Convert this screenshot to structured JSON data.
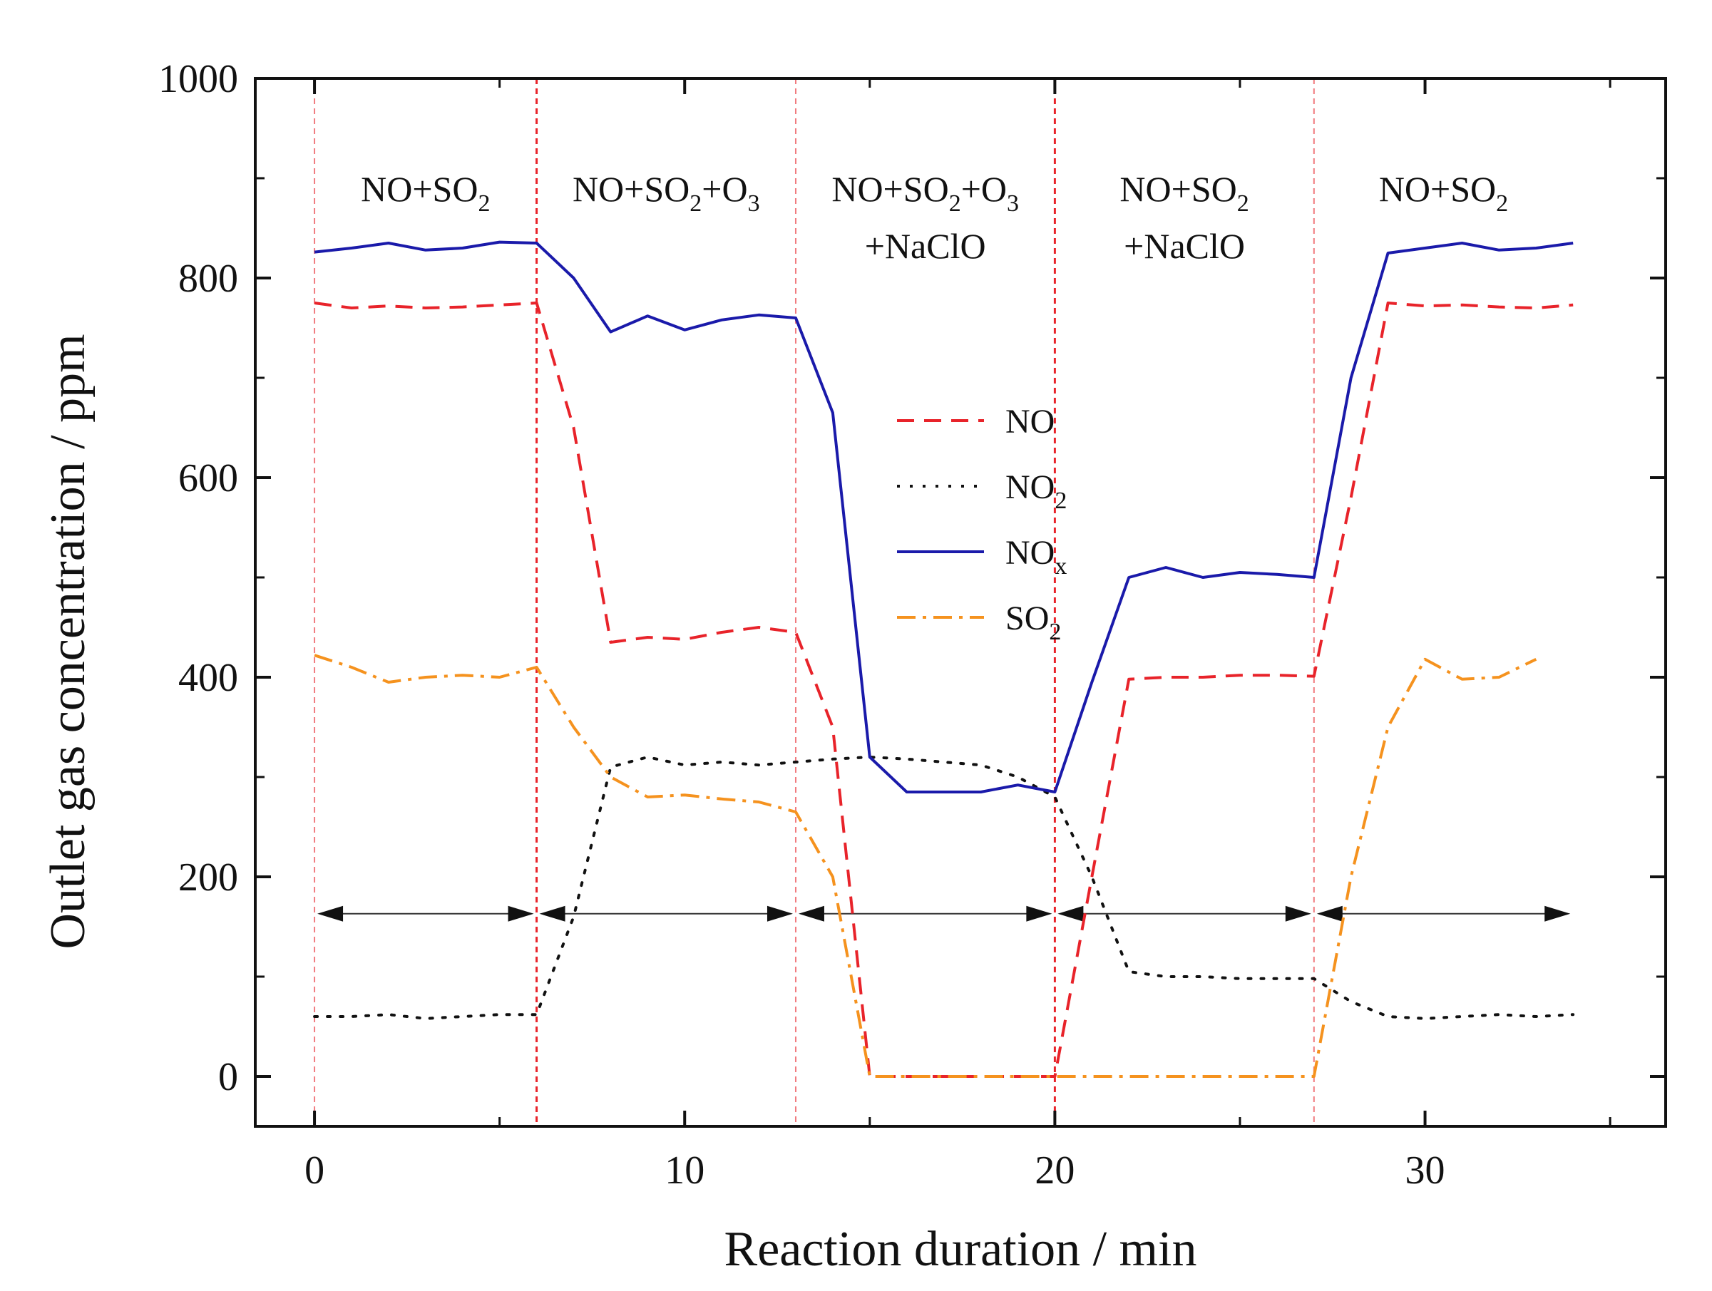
{
  "chart_data": {
    "type": "line",
    "xlabel": "Reaction duration / min",
    "ylabel": "Outlet gas concentration / ppm",
    "xlim": [
      -1.6,
      36.5
    ],
    "ylim": [
      -50,
      1000
    ],
    "xticks": [
      "0",
      "10",
      "20",
      "30"
    ],
    "xtick_values": [
      0,
      10,
      20,
      30
    ],
    "yticks": [
      "0",
      "200",
      "400",
      "600",
      "800",
      "1000"
    ],
    "ytick_values": [
      0,
      200,
      400,
      600,
      800,
      1000
    ],
    "phase_boundaries": [
      0,
      6,
      13,
      20,
      27
    ],
    "phase_arrow_y": 163,
    "phases": [
      {
        "lines": [
          {
            "base": "NO+SO",
            "sub": "2"
          }
        ],
        "x_center": 3
      },
      {
        "lines": [
          {
            "base": "NO+SO",
            "sub": "2",
            "tail": "+O",
            "tail_sub": "3"
          }
        ],
        "x_center": 9.5
      },
      {
        "lines": [
          {
            "base": "NO+SO",
            "sub": "2",
            "tail": "+O",
            "tail_sub": "3"
          },
          {
            "base": "+NaClO"
          }
        ],
        "x_center": 16.5
      },
      {
        "lines": [
          {
            "base": "NO+SO",
            "sub": "2"
          },
          {
            "base": "+NaClO"
          }
        ],
        "x_center": 23.5
      },
      {
        "lines": [
          {
            "base": "NO+SO",
            "sub": "2"
          }
        ],
        "x_center": 30.5
      }
    ],
    "series": [
      {
        "name": "NO",
        "base": "NO",
        "sub": "",
        "color": "#e8232a",
        "style": "dashed",
        "x": [
          0,
          1,
          2,
          3,
          4,
          5,
          6,
          7,
          8,
          9,
          10,
          11,
          12,
          13,
          14,
          15,
          16,
          17,
          18,
          19,
          20,
          21,
          22,
          23,
          24,
          25,
          26,
          27,
          28,
          29,
          30,
          31,
          32,
          33,
          34
        ],
        "y": [
          775,
          770,
          772,
          770,
          771,
          773,
          775,
          650,
          435,
          440,
          438,
          445,
          450,
          445,
          350,
          0,
          0,
          0,
          0,
          0,
          0,
          200,
          398,
          400,
          400,
          402,
          402,
          401,
          580,
          775,
          772,
          773,
          771,
          770,
          773
        ]
      },
      {
        "name": "NO2",
        "base": "NO",
        "sub": "2",
        "color": "#111111",
        "style": "dotted",
        "x": [
          0,
          1,
          2,
          3,
          4,
          5,
          6,
          7,
          8,
          9,
          10,
          11,
          12,
          13,
          14,
          15,
          16,
          17,
          18,
          19,
          20,
          21,
          22,
          23,
          24,
          25,
          26,
          27,
          28,
          29,
          30,
          31,
          32,
          33,
          34
        ],
        "y": [
          60,
          60,
          62,
          58,
          60,
          62,
          62,
          160,
          310,
          320,
          312,
          315,
          312,
          315,
          318,
          320,
          318,
          315,
          312,
          300,
          280,
          200,
          105,
          100,
          100,
          98,
          98,
          98,
          75,
          60,
          58,
          60,
          62,
          60,
          62
        ]
      },
      {
        "name": "NOx",
        "base": "NO",
        "sub": "x",
        "color": "#1a1aaa",
        "style": "solid",
        "x": [
          0,
          1,
          2,
          3,
          4,
          5,
          6,
          7,
          8,
          9,
          10,
          11,
          12,
          13,
          14,
          15,
          16,
          17,
          18,
          19,
          20,
          21,
          22,
          23,
          24,
          25,
          26,
          27,
          28,
          29,
          30,
          31,
          32,
          33,
          34
        ],
        "y": [
          826,
          830,
          835,
          828,
          830,
          836,
          835,
          800,
          746,
          762,
          748,
          758,
          763,
          760,
          665,
          320,
          285,
          285,
          285,
          292,
          285,
          395,
          500,
          510,
          500,
          505,
          503,
          500,
          700,
          825,
          830,
          835,
          828,
          830,
          835
        ]
      },
      {
        "name": "SO2",
        "base": "SO",
        "sub": "2",
        "color": "#f5921e",
        "style": "dashdot",
        "x": [
          0,
          1,
          2,
          3,
          4,
          5,
          6,
          7,
          8,
          9,
          10,
          11,
          12,
          13,
          14,
          15,
          16,
          17,
          18,
          19,
          20,
          21,
          22,
          23,
          24,
          25,
          26,
          27,
          28,
          29,
          30,
          31,
          32,
          33
        ],
        "y": [
          422,
          410,
          395,
          400,
          402,
          400,
          410,
          350,
          300,
          280,
          282,
          278,
          275,
          265,
          200,
          0,
          0,
          0,
          0,
          0,
          0,
          0,
          0,
          0,
          0,
          0,
          0,
          0,
          200,
          350,
          418,
          398,
          400,
          418
        ]
      }
    ]
  }
}
